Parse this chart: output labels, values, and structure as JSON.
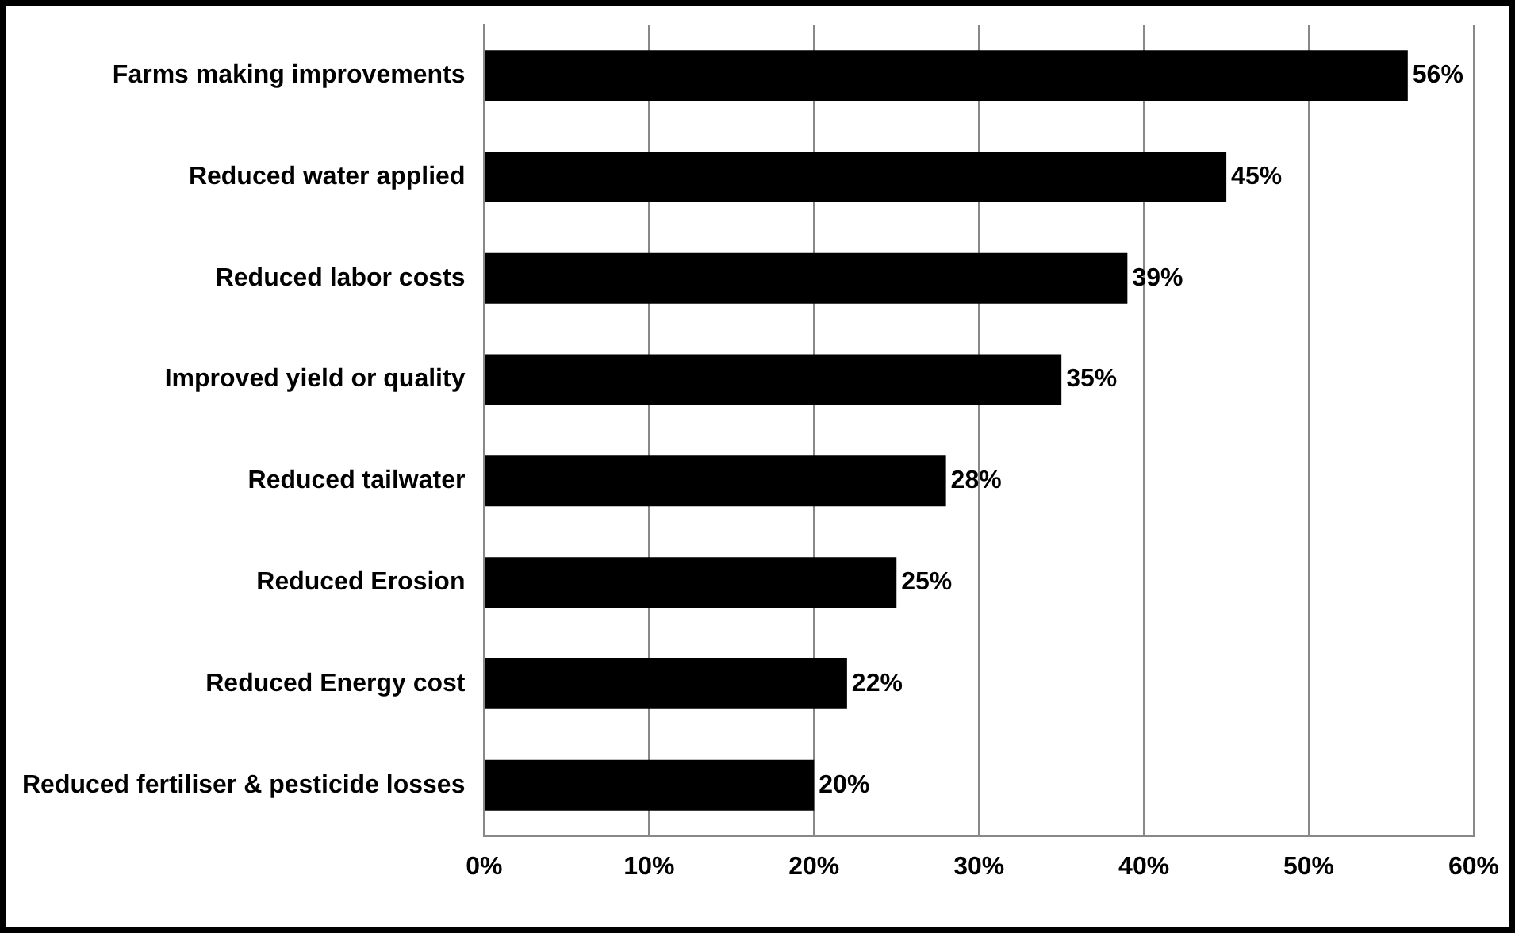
{
  "chart_data": {
    "type": "bar",
    "orientation": "horizontal",
    "categories": [
      "Farms making improvements",
      "Reduced water applied",
      "Reduced labor costs",
      "Improved yield or quality",
      "Reduced tailwater",
      "Reduced Erosion",
      "Reduced Energy cost",
      "Reduced fertiliser & pesticide losses"
    ],
    "values": [
      56,
      45,
      39,
      35,
      28,
      25,
      22,
      20
    ],
    "value_labels": [
      "56%",
      "45%",
      "39%",
      "35%",
      "28%",
      "25%",
      "22%",
      "20%"
    ],
    "color": "#000000",
    "xlim": [
      0,
      60
    ],
    "xticks": [
      {
        "value": 0,
        "label": "0%"
      },
      {
        "value": 10,
        "label": "10%"
      },
      {
        "value": 20,
        "label": "20%"
      },
      {
        "value": 30,
        "label": "30%"
      },
      {
        "value": 40,
        "label": "40%"
      },
      {
        "value": 50,
        "label": "50%"
      },
      {
        "value": 60,
        "label": "60%"
      }
    ],
    "grid": "x",
    "legend": false
  }
}
